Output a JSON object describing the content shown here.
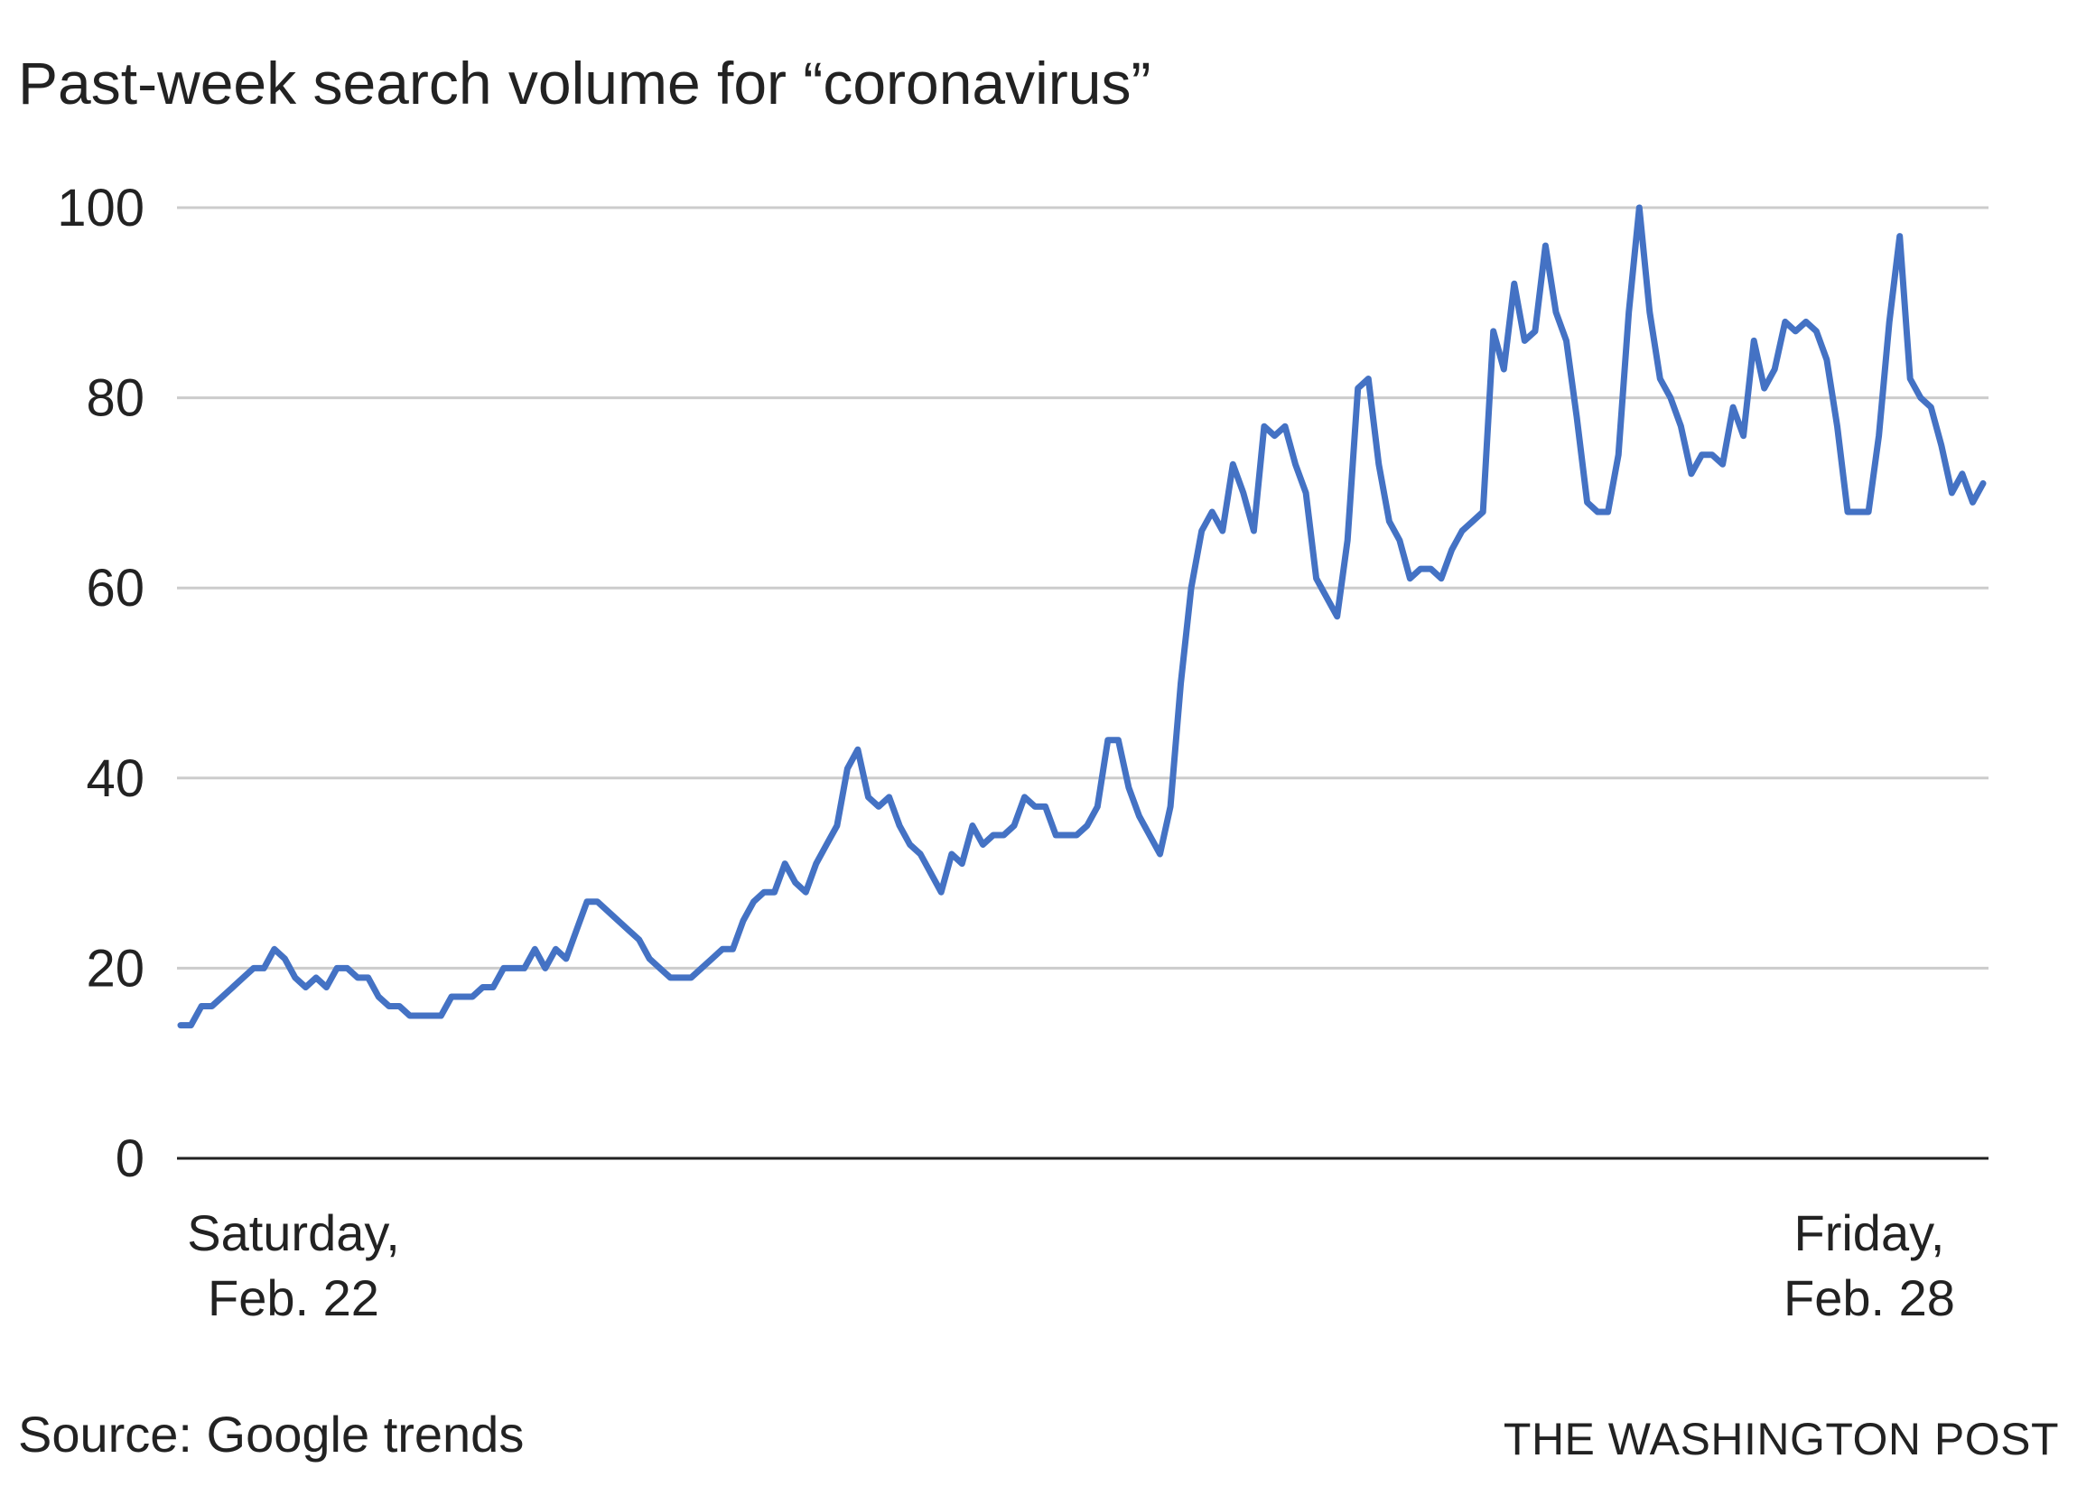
{
  "chart_data": {
    "type": "line",
    "title": "Past-week search volume for “coronavirus”",
    "xlabel": "",
    "ylabel": "",
    "ylim": [
      0,
      100
    ],
    "yticks": [
      0,
      20,
      40,
      60,
      80,
      100
    ],
    "ytick_labels": [
      "0",
      "20",
      "40",
      "60",
      "80",
      "100"
    ],
    "grid": true,
    "x_range": [
      "Saturday, Feb. 22",
      "Friday, Feb. 28"
    ],
    "x_tick_labels": [
      {
        "line1": "Saturday,",
        "line2": "Feb. 22"
      },
      {
        "line1": "Friday,",
        "line2": "Feb. 28"
      }
    ],
    "colors": {
      "line": "#4472c4",
      "grid": "#cccccc",
      "axis": "#222222",
      "text": "#222222"
    },
    "series": [
      {
        "values": [
          14,
          14,
          16,
          16,
          17,
          18,
          19,
          20,
          20,
          22,
          21,
          19,
          18,
          19,
          18,
          20,
          20,
          19,
          19,
          17,
          16,
          16,
          15,
          15,
          15,
          15,
          17,
          17,
          17,
          18,
          18,
          20,
          20,
          20,
          22,
          20,
          22,
          21,
          24,
          27,
          27,
          26,
          25,
          24,
          23,
          21,
          20,
          19,
          19,
          19,
          20,
          21,
          22,
          22,
          25,
          27,
          28,
          28,
          31,
          29,
          28,
          31,
          33,
          35,
          41,
          43,
          38,
          37,
          38,
          35,
          33,
          32,
          30,
          28,
          32,
          31,
          35,
          33,
          34,
          34,
          35,
          38,
          37,
          37,
          34,
          34,
          34,
          35,
          37,
          44,
          44,
          39,
          36,
          34,
          32,
          37,
          50,
          60,
          66,
          68,
          66,
          73,
          70,
          66,
          77,
          76,
          77,
          73,
          70,
          61,
          59,
          57,
          65,
          81,
          82,
          73,
          67,
          65,
          61,
          62,
          62,
          61,
          64,
          66,
          67,
          68,
          87,
          83,
          92,
          86,
          87,
          96,
          89,
          86,
          78,
          69,
          68,
          68,
          74,
          89,
          100,
          89,
          82,
          80,
          77,
          72,
          74,
          74,
          73,
          79,
          76,
          86,
          81,
          83,
          88,
          87,
          88,
          87,
          84,
          77,
          68,
          68,
          68,
          76,
          88,
          97,
          82,
          80,
          79,
          75,
          70,
          72,
          69,
          71
        ]
      }
    ]
  },
  "footer": {
    "source": "Source: Google trends",
    "credit": "THE WASHINGTON POST"
  }
}
